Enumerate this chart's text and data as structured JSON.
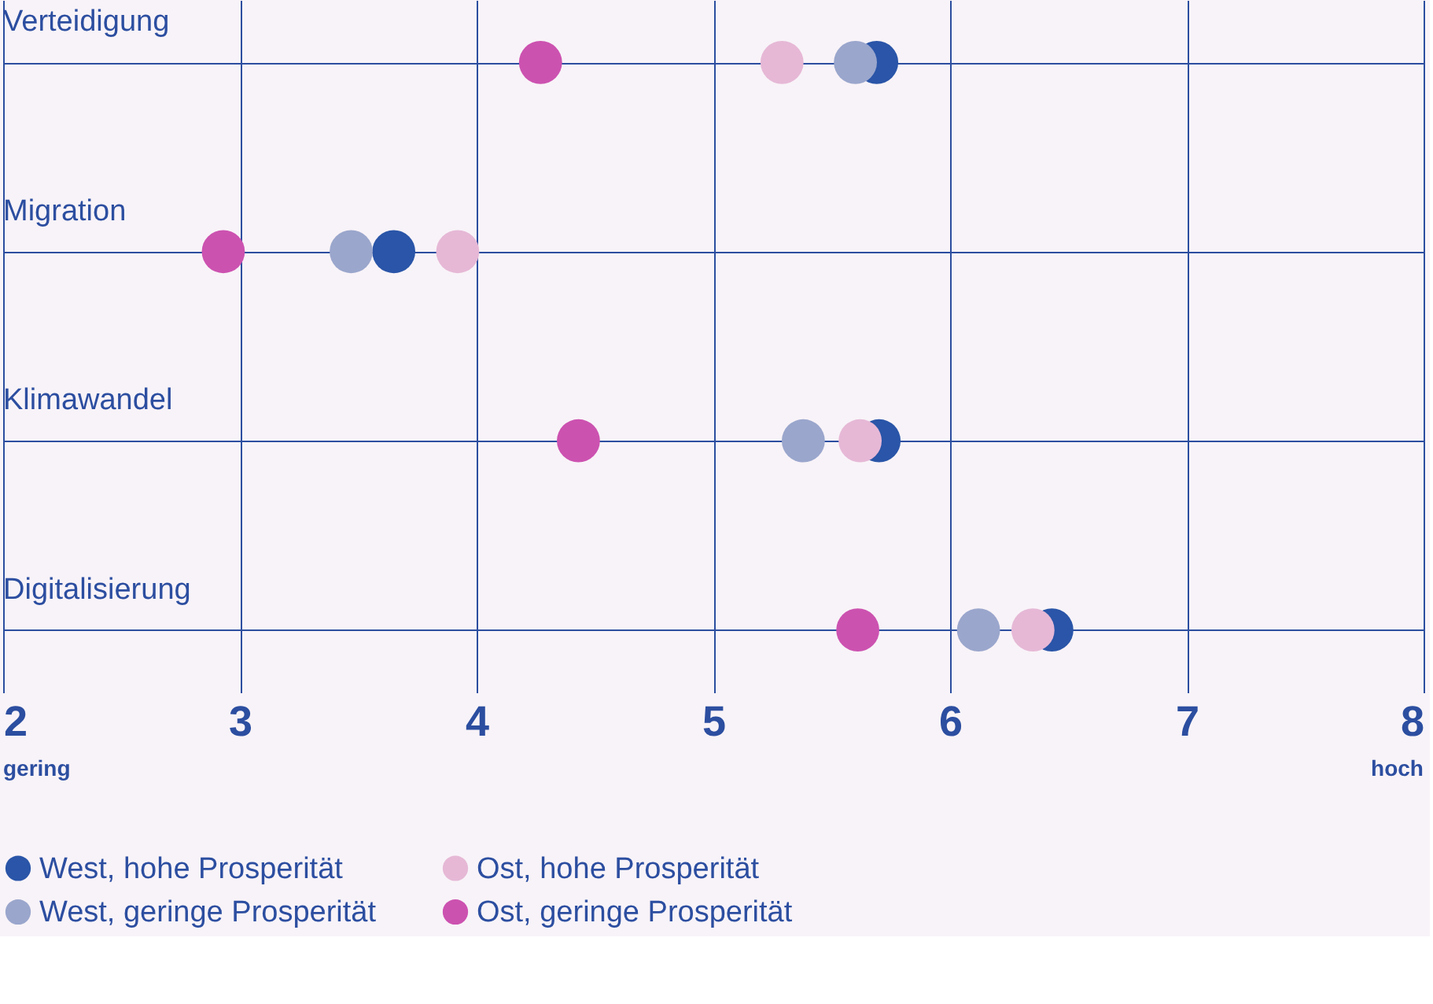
{
  "chart_data": {
    "type": "scatter",
    "categories": [
      "Verteidigung",
      "Migration",
      "Klimawandel",
      "Digitalisierung"
    ],
    "orientation": "horizontal",
    "series": [
      {
        "name": "West, hohe Prosperität",
        "color": "#2a55a8",
        "values": [
          5.69,
          3.65,
          5.7,
          6.43
        ]
      },
      {
        "name": "Ost, hohe Prosperität",
        "color": "#e6b8d6",
        "values": [
          5.29,
          3.92,
          5.62,
          6.35
        ]
      },
      {
        "name": "West, geringe Prosperität",
        "color": "#9aa6cc",
        "values": [
          5.6,
          3.47,
          5.38,
          6.12
        ]
      },
      {
        "name": "Ost, geringe Prosperität",
        "color": "#cc52b0",
        "values": [
          4.27,
          2.93,
          4.43,
          5.61
        ]
      }
    ],
    "xlim": [
      2,
      8
    ],
    "xticks": [
      2,
      3,
      4,
      5,
      6,
      7,
      8
    ],
    "annotations": [
      "gering",
      "hoch"
    ],
    "grid": true,
    "legend": "bottom",
    "marker": "circle"
  }
}
